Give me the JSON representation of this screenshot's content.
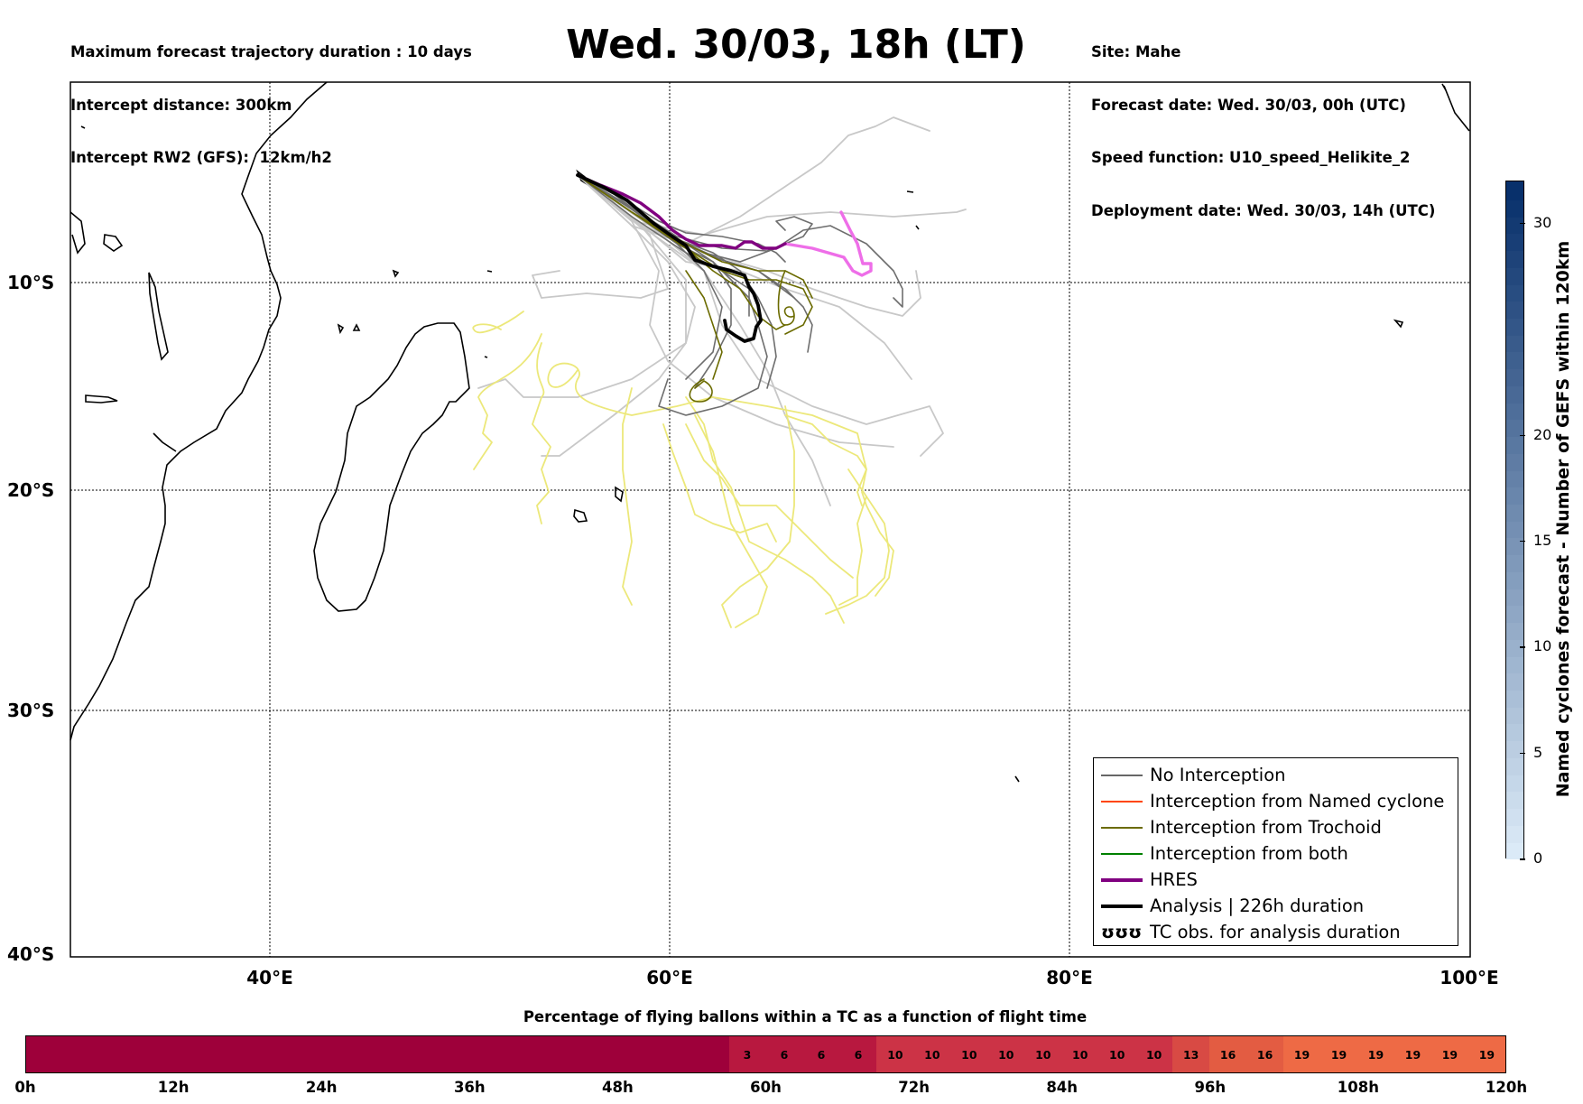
{
  "header": {
    "left": [
      "Maximum forecast trajectory duration : 10 days",
      "Intercept distance: 300km",
      "Intercept RW2 (GFS):  12km/h2"
    ],
    "title": "Wed. 30/03, 18h (LT)",
    "right": [
      "Site: Mahe",
      "Forecast date: Wed. 30/03, 00h (UTC)",
      "Speed function: U10_speed_Helikite_2",
      "Deployment date: Wed. 30/03, 14h (UTC)"
    ]
  },
  "map": {
    "lat_labels": [
      "10°S",
      "20°S",
      "30°S",
      "40°S"
    ],
    "lon_labels": [
      "40°E",
      "60°E",
      "80°E",
      "100°E"
    ],
    "colors": {
      "no_interception": "#666666",
      "no_interception_light": "#c8c8c8",
      "named_cyclone": "#ff4500",
      "trochoid": "#6b6b00",
      "trochoid_light": "#ece87a",
      "both": "#008000",
      "hres": "#800080",
      "hres_light": "#ee6ee8",
      "analysis": "#000000"
    }
  },
  "legend": [
    {
      "label": "No Interception",
      "color": "#666666",
      "style": "thin"
    },
    {
      "label": "Interception from Named cyclone",
      "color": "#ff4500",
      "style": "thin"
    },
    {
      "label": "Interception from Trochoid",
      "color": "#6b6b00",
      "style": "thin"
    },
    {
      "label": "Interception from both",
      "color": "#008000",
      "style": "thin"
    },
    {
      "label": "HRES",
      "color": "#800080",
      "style": "thick"
    },
    {
      "label": "Analysis | 226h duration",
      "color": "#000000",
      "style": "thick"
    },
    {
      "label": "TC obs. for analysis duration",
      "color": "#000000",
      "style": "symbol",
      "symbol": "ʊʊʊ"
    }
  ],
  "colorbar": {
    "label": "Named cyclones forecast - Number of GEFS within 120km",
    "ticks": [
      "0",
      "5",
      "10",
      "15",
      "20",
      "30"
    ],
    "range": [
      0,
      32
    ]
  },
  "percentage_bar": {
    "title": "Percentage of flying ballons within a TC as a function of flight time",
    "values": [
      0,
      0,
      0,
      0,
      0,
      0,
      0,
      0,
      0,
      0,
      0,
      0,
      0,
      0,
      0,
      0,
      0,
      0,
      0,
      3,
      6,
      6,
      6,
      10,
      10,
      10,
      10,
      10,
      10,
      10,
      10,
      13,
      16,
      16,
      19,
      19,
      19,
      19,
      19,
      19
    ],
    "hidden_zero_label": true,
    "ticks": [
      "0h",
      "12h",
      "24h",
      "36h",
      "48h",
      "60h",
      "72h",
      "84h",
      "96h",
      "108h",
      "120h"
    ]
  }
}
